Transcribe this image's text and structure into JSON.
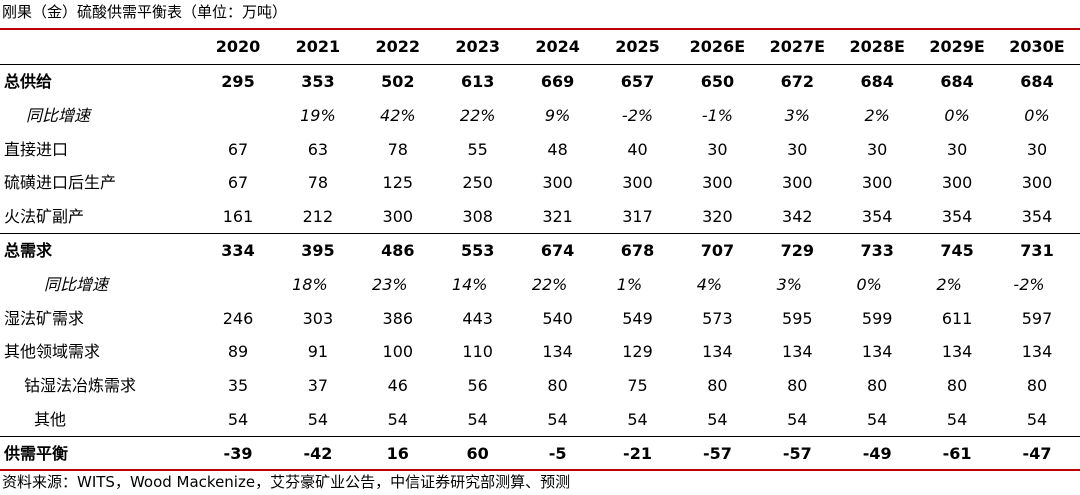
{
  "title": "刚果（金）硫酸供需平衡表（单位：万吨）",
  "table": {
    "header": [
      "2020",
      "2021",
      "2022",
      "2023",
      "2024",
      "2025",
      "2026E",
      "2027E",
      "2028E",
      "2029E",
      "2030E"
    ],
    "rows": [
      {
        "label": "总供给",
        "cells": [
          "295",
          "353",
          "502",
          "613",
          "669",
          "657",
          "650",
          "672",
          "684",
          "684",
          "684"
        ]
      },
      {
        "label": "同比增速",
        "cells": [
          null,
          "19%",
          "42%",
          "22%",
          "9%",
          "-2%",
          "-1%",
          "3%",
          "2%",
          "0%",
          "0%"
        ]
      },
      {
        "label": "直接进口",
        "cells": [
          "67",
          "63",
          "78",
          "55",
          "48",
          "40",
          "30",
          "30",
          "30",
          "30",
          "30"
        ]
      },
      {
        "label": "硫磺进口后生产",
        "cells": [
          "67",
          "78",
          "125",
          "250",
          "300",
          "300",
          "300",
          "300",
          "300",
          "300",
          "300"
        ]
      },
      {
        "label": "火法矿副产",
        "cells": [
          "161",
          "212",
          "300",
          "308",
          "321",
          "317",
          "320",
          "342",
          "354",
          "354",
          "354"
        ]
      },
      {
        "label": "总需求",
        "cells": [
          "334",
          "395",
          "486",
          "553",
          "674",
          "678",
          "707",
          "729",
          "733",
          "745",
          "731"
        ]
      },
      {
        "label": "同比增速",
        "cells": [
          null,
          "18%",
          "23%",
          "14%",
          "22%",
          "1%",
          "4%",
          "3%",
          "0%",
          "2%",
          "-2%"
        ]
      },
      {
        "label": "湿法矿需求",
        "cells": [
          "246",
          "303",
          "386",
          "443",
          "540",
          "549",
          "573",
          "595",
          "599",
          "611",
          "597"
        ]
      },
      {
        "label": "其他领域需求",
        "cells": [
          "89",
          "91",
          "100",
          "110",
          "134",
          "129",
          "134",
          "134",
          "134",
          "134",
          "134"
        ]
      },
      {
        "label": "钴湿法冶炼需求",
        "cells": [
          "35",
          "37",
          "46",
          "56",
          "80",
          "75",
          "80",
          "80",
          "80",
          "80",
          "80"
        ]
      },
      {
        "label": "其他",
        "cells": [
          "54",
          "54",
          "54",
          "54",
          "54",
          "54",
          "54",
          "54",
          "54",
          "54",
          "54"
        ]
      },
      {
        "label": "供需平衡",
        "cells": [
          "-39",
          "-42",
          "16",
          "60",
          "-5",
          "-21",
          "-57",
          "-57",
          "-49",
          "-61",
          "-47"
        ]
      }
    ]
  },
  "source": "资料来源：WITS，Wood Mackenize，艾芬豪矿业公告，中信证券研究部测算、预测"
}
